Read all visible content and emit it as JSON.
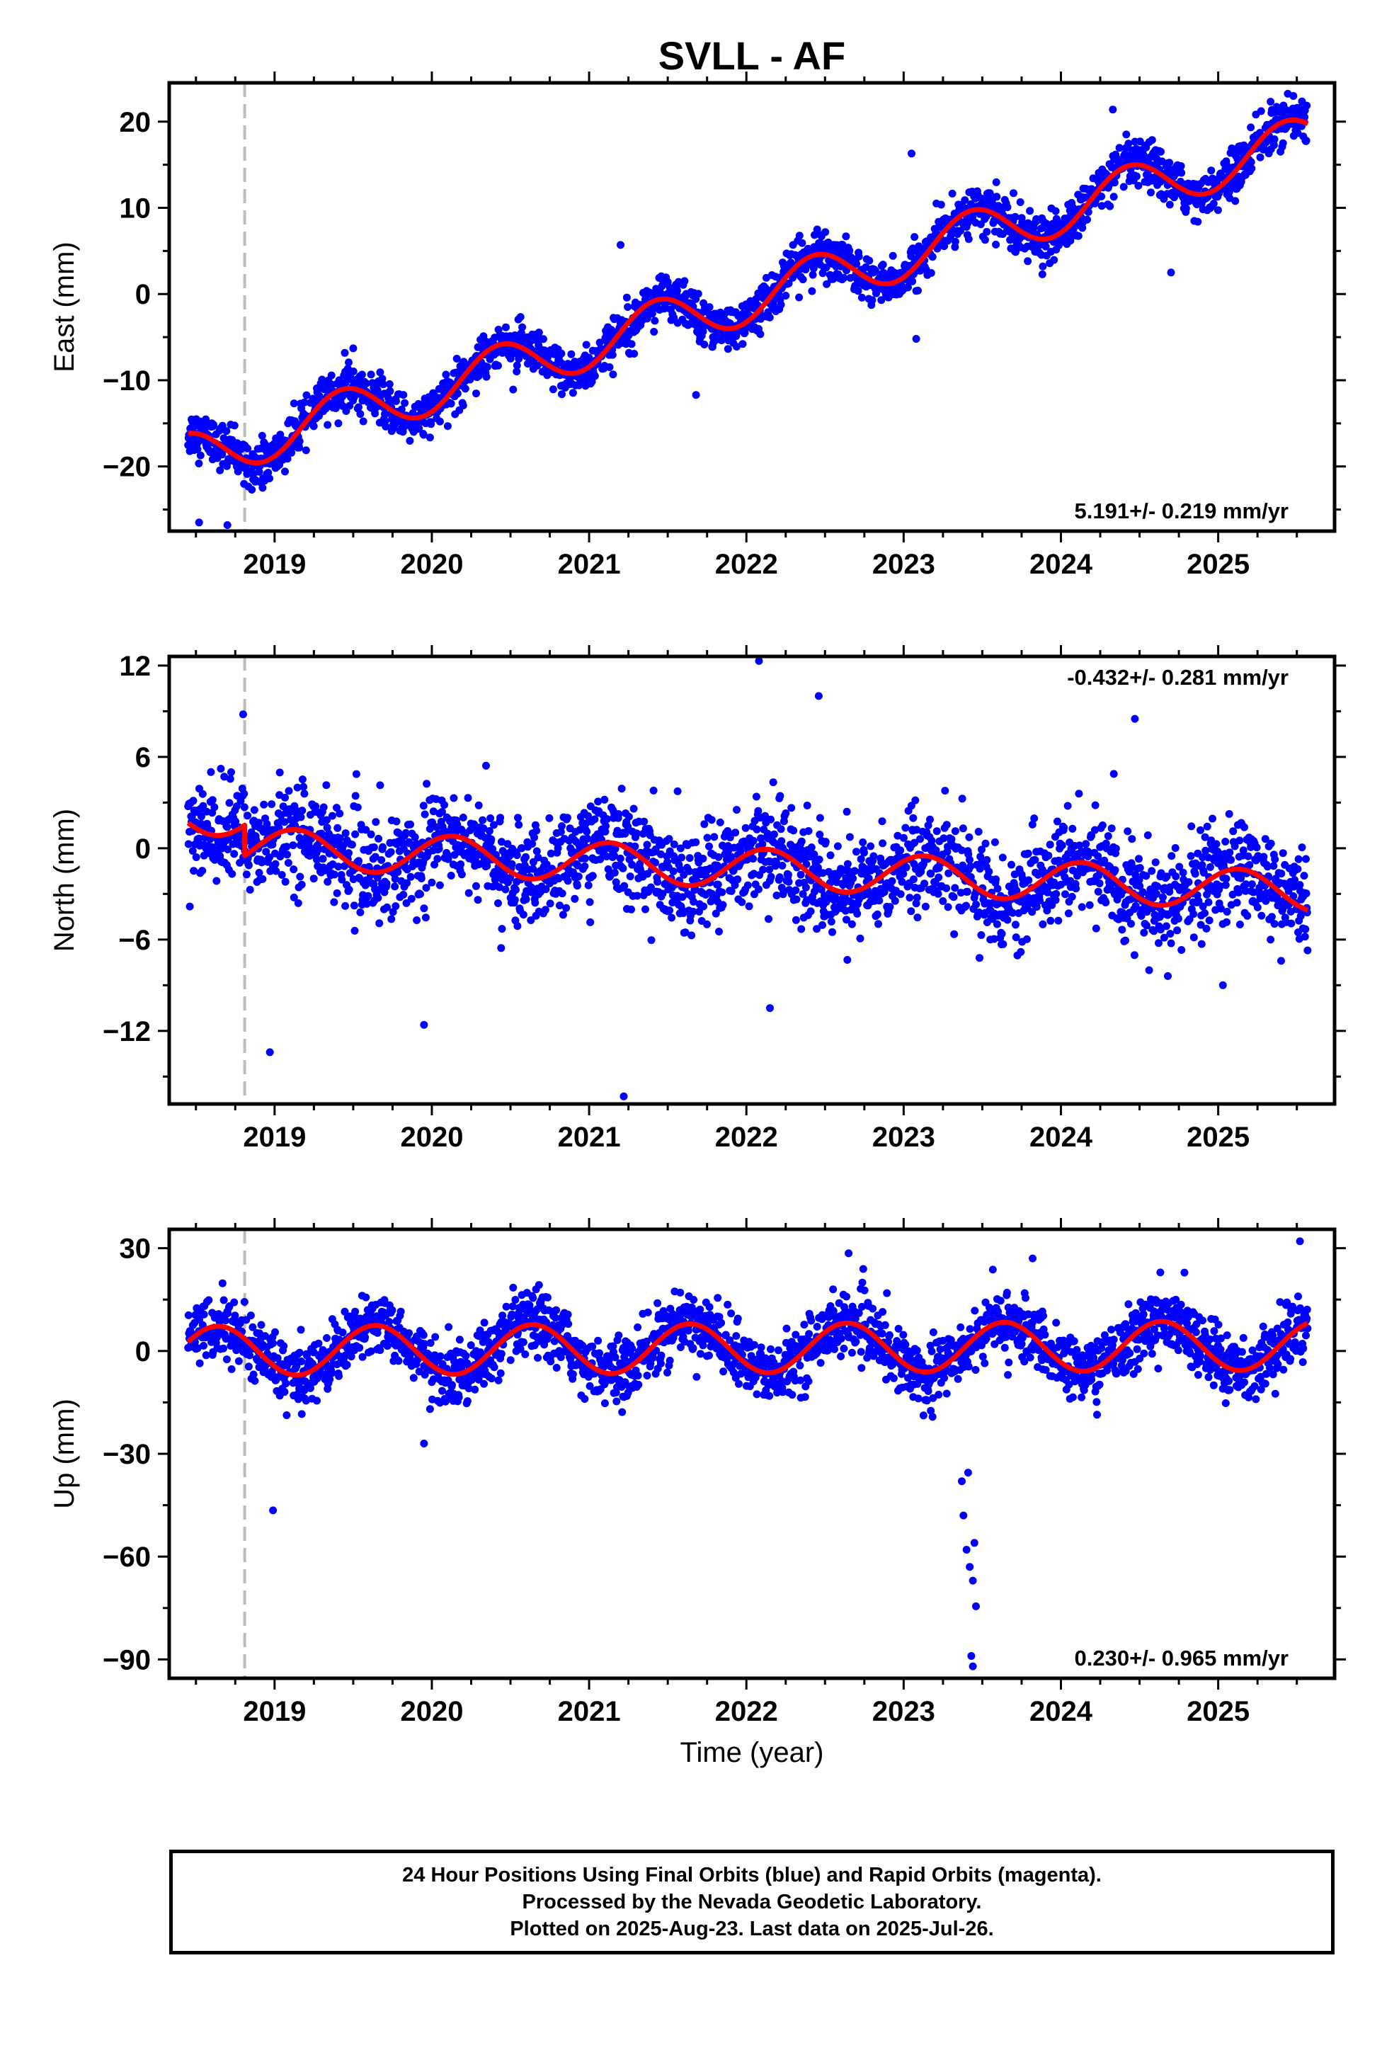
{
  "title": "SVLL - AF",
  "xlabel": "Time (year)",
  "x_ticks": [
    "2019",
    "2020",
    "2021",
    "2022",
    "2023",
    "2024",
    "2025"
  ],
  "colors": {
    "final_orbit_points": "#0000ff",
    "model_fit": "#ff0000",
    "equipment_change_line": "#bbbbbb",
    "frame": "#000000"
  },
  "chart_data": [
    {
      "type": "scatter",
      "component": "east",
      "ylabel": "East (mm)",
      "velocity_label": "5.191+/- 0.219 mm/yr",
      "velocity_label_position": "bottom-right",
      "xlim": [
        2018.33,
        2025.74
      ],
      "ylim": [
        -27.5,
        24.5
      ],
      "y_ticks": [
        20,
        10,
        0,
        -10,
        -20
      ],
      "y_tick_labels": [
        "20",
        "10",
        "0",
        "−10",
        "−20"
      ],
      "equipment_change_x": 2018.81,
      "model": {
        "rate_mm_per_yr": 5.191,
        "offset_at_2018_5": -18.8,
        "annual_amplitude": 2.9,
        "annual_peak_year_fraction": 0.43,
        "step_at_equipment_change": 0.0,
        "series": "model_fit"
      },
      "data_series": {
        "name": "",
        "x_start": 2018.45,
        "x_end": 2025.57,
        "scatter_sd": 1.3,
        "sample_outliers": [
          [
            2018.52,
            -26.5
          ],
          [
            2018.7,
            -26.8
          ],
          [
            2019.5,
            -6.3
          ],
          [
            2021.2,
            5.7
          ],
          [
            2021.68,
            -11.7
          ],
          [
            2023.08,
            -5.2
          ],
          [
            2023.05,
            16.3
          ],
          [
            2024.33,
            21.4
          ],
          [
            2024.7,
            2.5
          ]
        ]
      }
    },
    {
      "type": "scatter",
      "component": "north",
      "ylabel": "North (mm)",
      "velocity_label": "-0.432+/- 0.281 mm/yr",
      "velocity_label_position": "top-right",
      "xlim": [
        2018.33,
        2025.74
      ],
      "ylim": [
        -16.8,
        12.6
      ],
      "y_ticks": [
        12,
        6,
        0,
        -6,
        -12
      ],
      "y_tick_labels": [
        "12",
        "6",
        "0",
        "−6",
        "−12"
      ],
      "equipment_change_x": 2018.81,
      "model": {
        "rate_mm_per_yr": -0.432,
        "offset_at_2018_5": 2.2,
        "annual_amplitude": 1.3,
        "annual_peak_year_fraction": 0.13,
        "step_at_equipment_change": -2.0,
        "series": "model_fit"
      },
      "data_series": {
        "name": "",
        "x_start": 2018.45,
        "x_end": 2025.57,
        "scatter_sd": 1.6,
        "sample_outliers": [
          [
            2018.8,
            8.8
          ],
          [
            2018.97,
            -13.4
          ],
          [
            2019.95,
            -11.6
          ],
          [
            2021.22,
            -16.3
          ],
          [
            2022.08,
            12.3
          ],
          [
            2022.15,
            -10.5
          ],
          [
            2022.46,
            10.0
          ],
          [
            2024.47,
            8.5
          ],
          [
            2024.68,
            -8.4
          ],
          [
            2025.03,
            -9.0
          ],
          [
            2025.4,
            -7.4
          ]
        ]
      }
    },
    {
      "type": "scatter",
      "component": "up",
      "ylabel": "Up (mm)",
      "velocity_label": "0.230+/- 0.965 mm/yr",
      "velocity_label_position": "bottom-right",
      "xlim": [
        2018.33,
        2025.74
      ],
      "ylim": [
        -95.5,
        35.5
      ],
      "y_ticks": [
        30,
        0,
        -30,
        -60,
        -90
      ],
      "y_tick_labels": [
        "30",
        "0",
        "−30",
        "−60",
        "−90"
      ],
      "equipment_change_x": 2018.81,
      "model": {
        "rate_mm_per_yr": 0.23,
        "offset_at_2018_5": 0.0,
        "annual_amplitude": 7.2,
        "annual_peak_year_fraction": 0.64,
        "step_at_equipment_change": 0.0,
        "series": "model_fit"
      },
      "data_series": {
        "name": "",
        "x_start": 2018.45,
        "x_end": 2025.57,
        "scatter_sd": 4.5,
        "sample_outliers": [
          [
            2018.99,
            -46.5
          ],
          [
            2019.95,
            -27.0
          ],
          [
            2022.65,
            28.5
          ],
          [
            2023.37,
            -38.0
          ],
          [
            2023.38,
            -48.0
          ],
          [
            2023.4,
            -58.0
          ],
          [
            2023.42,
            -63.0
          ],
          [
            2023.44,
            -67.0
          ],
          [
            2023.45,
            -56.0
          ],
          [
            2023.46,
            -74.5
          ],
          [
            2023.43,
            -89.0
          ],
          [
            2023.44,
            -92.0
          ],
          [
            2023.41,
            -35.5
          ],
          [
            2023.82,
            27.0
          ],
          [
            2025.52,
            32.0
          ]
        ]
      }
    }
  ],
  "footer": {
    "line1": "24 Hour Positions Using Final Orbits (blue) and Rapid Orbits (magenta).",
    "line2": "Processed by the Nevada Geodetic Laboratory.",
    "line3": "Plotted on 2025-Aug-23. Last data on 2025-Jul-26."
  }
}
